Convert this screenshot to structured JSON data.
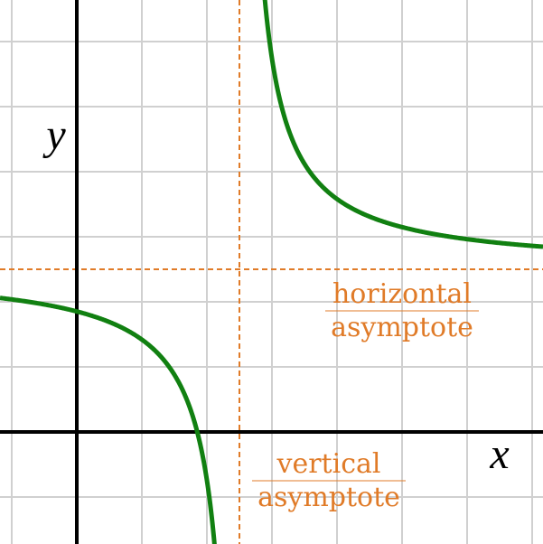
{
  "axes": {
    "x_label": "x",
    "y_label": "y"
  },
  "annotations": {
    "horizontal": [
      "horizontal",
      "asymptote"
    ],
    "vertical": [
      "vertical",
      "asymptote"
    ]
  }
}
